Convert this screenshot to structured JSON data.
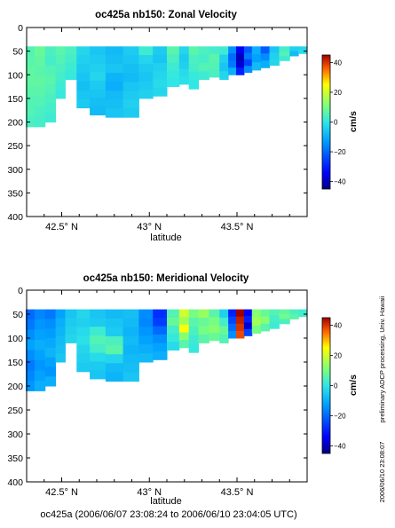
{
  "colors": {
    "deep_negative": "#000080",
    "negative": "#0050ff",
    "zero": "#1ec8ff",
    "positive": "#ffe600",
    "strong_positive": "#c80000"
  },
  "chart_data": [
    {
      "type": "heatmap",
      "title": "oc425a nb150: Zonal Velocity",
      "xlabel": "latitude",
      "xlim": [
        42.3,
        43.9
      ],
      "ylim": [
        400,
        0
      ],
      "xticks": [
        42.5,
        43.0,
        43.5
      ],
      "xticklabels": [
        "42.5° N",
        "43° N",
        "43.5° N"
      ],
      "yticklabels": [
        "0",
        "50",
        "100",
        "150",
        "200",
        "250",
        "300",
        "350",
        "400"
      ],
      "colorbar": {
        "label": "cm/s",
        "range": [
          -45,
          45
        ],
        "ticks": [
          40,
          20,
          0,
          -20,
          -40
        ],
        "ticklabels": [
          "40",
          "20",
          "0",
          "−20",
          "−40"
        ]
      },
      "data_columns": [
        {
          "lat": 42.32,
          "depth_max": 210,
          "vals": [
            5,
            6,
            7,
            7,
            6,
            5,
            5,
            4
          ]
        },
        {
          "lat": 42.37,
          "depth_max": 210,
          "vals": [
            8,
            7,
            6,
            7,
            6,
            5,
            4,
            3
          ]
        },
        {
          "lat": 42.44,
          "depth_max": 200,
          "vals": [
            4,
            3,
            5,
            6,
            5,
            4,
            3,
            2
          ]
        },
        {
          "lat": 42.49,
          "depth_max": 150,
          "vals": [
            6,
            5,
            4,
            3,
            2,
            1
          ]
        },
        {
          "lat": 42.55,
          "depth_max": 110,
          "vals": [
            4,
            3,
            2,
            1
          ]
        },
        {
          "lat": 42.62,
          "depth_max": 170,
          "vals": [
            -3,
            -4,
            -5,
            -6,
            -7,
            -6,
            -5
          ]
        },
        {
          "lat": 42.7,
          "depth_max": 185,
          "vals": [
            -6,
            -5,
            -4,
            -3,
            -5,
            -6,
            -7,
            -8
          ]
        },
        {
          "lat": 42.8,
          "depth_max": 190,
          "vals": [
            -8,
            -7,
            -6,
            -9,
            -10,
            -8,
            -7,
            -6
          ]
        },
        {
          "lat": 42.9,
          "depth_max": 190,
          "vals": [
            -5,
            -6,
            -7,
            -8,
            -6,
            -5,
            -4,
            -5
          ]
        },
        {
          "lat": 42.98,
          "depth_max": 150,
          "vals": [
            2,
            -3,
            -5,
            -6,
            -5,
            -4
          ]
        },
        {
          "lat": 43.06,
          "depth_max": 145,
          "vals": [
            -5,
            -6,
            -4,
            -3,
            -2,
            -3
          ]
        },
        {
          "lat": 43.14,
          "depth_max": 125,
          "vals": [
            6,
            4,
            2,
            1,
            0
          ]
        },
        {
          "lat": 43.2,
          "depth_max": 120,
          "vals": [
            -3,
            -5,
            -4,
            -2,
            -1
          ]
        },
        {
          "lat": 43.25,
          "depth_max": 130,
          "vals": [
            6,
            4,
            3,
            1,
            0
          ]
        },
        {
          "lat": 43.31,
          "depth_max": 110,
          "vals": [
            4,
            3,
            5,
            2
          ]
        },
        {
          "lat": 43.37,
          "depth_max": 105,
          "vals": [
            3,
            6,
            5,
            4
          ]
        },
        {
          "lat": 43.43,
          "depth_max": 110,
          "vals": [
            2,
            -4,
            -6,
            -3
          ]
        },
        {
          "lat": 43.47,
          "depth_max": 100,
          "vals": [
            -15,
            -20,
            -18,
            -10
          ]
        },
        {
          "lat": 43.52,
          "depth_max": 100,
          "vals": [
            -35,
            -40,
            -38,
            -30
          ]
        },
        {
          "lat": 43.56,
          "depth_max": 95,
          "vals": [
            -22,
            -18,
            -25,
            -15
          ]
        },
        {
          "lat": 43.61,
          "depth_max": 90,
          "vals": [
            -10,
            -12,
            -8
          ]
        },
        {
          "lat": 43.66,
          "depth_max": 85,
          "vals": [
            -22,
            -15,
            -10
          ]
        },
        {
          "lat": 43.71,
          "depth_max": 80,
          "vals": [
            -6,
            -4,
            -3
          ]
        },
        {
          "lat": 43.77,
          "depth_max": 70,
          "vals": [
            3,
            5,
            2
          ]
        },
        {
          "lat": 43.83,
          "depth_max": 60,
          "vals": [
            -4,
            -8
          ]
        },
        {
          "lat": 43.87,
          "depth_max": 55,
          "vals": [
            -3,
            -2
          ]
        }
      ]
    },
    {
      "type": "heatmap",
      "title": "oc425a nb150: Meridional Velocity",
      "xlabel": "latitude",
      "xlim": [
        42.3,
        43.9
      ],
      "ylim": [
        400,
        0
      ],
      "xticks": [
        42.5,
        43.0,
        43.5
      ],
      "xticklabels": [
        "42.5° N",
        "43° N",
        "43.5° N"
      ],
      "yticklabels": [
        "0",
        "50",
        "100",
        "150",
        "200",
        "250",
        "300",
        "350",
        "400"
      ],
      "colorbar": {
        "label": "cm/s",
        "range": [
          -45,
          45
        ],
        "ticks": [
          40,
          20,
          0,
          -20,
          -40
        ],
        "ticklabels": [
          "40",
          "20",
          "0",
          "−20",
          "−40"
        ]
      },
      "data_columns": [
        {
          "lat": 42.32,
          "depth_max": 210,
          "vals": [
            -20,
            -18,
            -15,
            -12,
            -15,
            -18,
            -16,
            -14
          ]
        },
        {
          "lat": 42.37,
          "depth_max": 210,
          "vals": [
            -16,
            -14,
            -12,
            -10,
            -12,
            -14,
            -12,
            -10
          ]
        },
        {
          "lat": 42.44,
          "depth_max": 200,
          "vals": [
            -18,
            -15,
            -13,
            -11,
            -9,
            -12,
            -14,
            -10
          ]
        },
        {
          "lat": 42.49,
          "depth_max": 150,
          "vals": [
            -12,
            -10,
            -9,
            -8,
            -7,
            -6
          ]
        },
        {
          "lat": 42.55,
          "depth_max": 110,
          "vals": [
            -6,
            -5,
            -4,
            -3
          ]
        },
        {
          "lat": 42.62,
          "depth_max": 170,
          "vals": [
            -3,
            -4,
            -2,
            -1,
            -3,
            -4,
            -5
          ]
        },
        {
          "lat": 42.7,
          "depth_max": 185,
          "vals": [
            -6,
            -5,
            2,
            5,
            3,
            -2,
            -5,
            -6
          ]
        },
        {
          "lat": 42.8,
          "depth_max": 190,
          "vals": [
            -8,
            -6,
            -5,
            4,
            6,
            -3,
            -8,
            -9
          ]
        },
        {
          "lat": 42.9,
          "depth_max": 190,
          "vals": [
            -7,
            -8,
            -9,
            -8,
            -9,
            -8,
            -7,
            -6
          ]
        },
        {
          "lat": 42.98,
          "depth_max": 150,
          "vals": [
            -15,
            -16,
            -14,
            -12,
            -10,
            -8
          ]
        },
        {
          "lat": 43.06,
          "depth_max": 145,
          "vals": [
            -28,
            -26,
            -20,
            -15,
            -12,
            -10
          ]
        },
        {
          "lat": 43.14,
          "depth_max": 125,
          "vals": [
            5,
            8,
            3,
            1,
            -2
          ]
        },
        {
          "lat": 43.2,
          "depth_max": 120,
          "vals": [
            20,
            15,
            25,
            12,
            6
          ]
        },
        {
          "lat": 43.25,
          "depth_max": 130,
          "vals": [
            10,
            6,
            4,
            2,
            1
          ]
        },
        {
          "lat": 43.31,
          "depth_max": 110,
          "vals": [
            14,
            8,
            10,
            6
          ]
        },
        {
          "lat": 43.37,
          "depth_max": 105,
          "vals": [
            6,
            10,
            12,
            8
          ]
        },
        {
          "lat": 43.43,
          "depth_max": 110,
          "vals": [
            -4,
            3,
            8,
            5
          ]
        },
        {
          "lat": 43.47,
          "depth_max": 100,
          "vals": [
            -30,
            -25,
            -20,
            -15
          ]
        },
        {
          "lat": 43.52,
          "depth_max": 100,
          "vals": [
            45,
            42,
            40,
            38
          ]
        },
        {
          "lat": 43.56,
          "depth_max": 95,
          "vals": [
            -35,
            -30,
            -38,
            -25
          ]
        },
        {
          "lat": 43.61,
          "depth_max": 90,
          "vals": [
            12,
            15,
            10
          ]
        },
        {
          "lat": 43.66,
          "depth_max": 85,
          "vals": [
            8,
            12,
            6
          ]
        },
        {
          "lat": 43.71,
          "depth_max": 80,
          "vals": [
            5,
            3,
            2
          ]
        },
        {
          "lat": 43.77,
          "depth_max": 70,
          "vals": [
            7,
            9,
            4
          ]
        },
        {
          "lat": 43.83,
          "depth_max": 60,
          "vals": [
            4,
            6
          ]
        },
        {
          "lat": 43.87,
          "depth_max": 55,
          "vals": [
            2,
            3
          ]
        }
      ]
    }
  ],
  "footer": "oc425a (2006/06/07 23:08:24 to 2006/06/10 23:04:05 UTC)",
  "side_note": "preliminary ADCP processing,  Univ. Hawaii",
  "side_date": "2006/06/10 23:08:07"
}
